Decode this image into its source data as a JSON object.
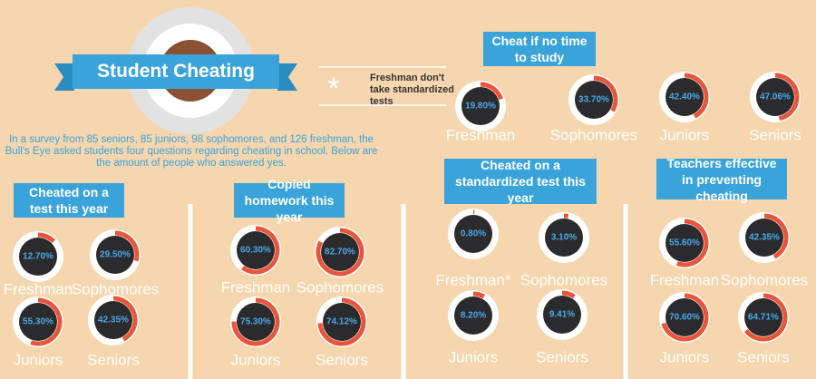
{
  "title": "Student Cheating",
  "note_mark": "*",
  "note": "Freshman don't take standardized tests",
  "intro": "In a survey from 85 seniors, 85 juniors, 98 sophomores, and 126 freshman, the Bull's Eye asked students four questions regarding cheating in school. Below are the amount of people who answered yes.",
  "chart_data": [
    {
      "type": "gauge",
      "title": "Cheated on a test this year",
      "categories": [
        "Freshman",
        "Sophomores",
        "Juniors",
        "Seniors"
      ],
      "values": [
        12.7,
        29.5,
        55.3,
        42.35
      ],
      "value_labels": [
        "12.70%",
        "29.50%",
        "55.30%",
        "42.35%"
      ],
      "color": "#e8553a"
    },
    {
      "type": "gauge",
      "title": "Copied homework this year",
      "categories": [
        "Freshman",
        "Sophomores",
        "Juniors",
        "Seniors"
      ],
      "values": [
        60.3,
        82.7,
        75.3,
        74.12
      ],
      "value_labels": [
        "60.30%",
        "82.70%",
        "75.30%",
        "74.12%"
      ],
      "color": "#e8553a"
    },
    {
      "type": "gauge",
      "title": "Cheated on a standardized test this year",
      "categories": [
        "Freshman*",
        "Sophomores",
        "Juniors",
        "Seniors"
      ],
      "values": [
        0.8,
        3.1,
        8.2,
        9.41
      ],
      "value_labels": [
        "0.80%",
        "3.10%",
        "8.20%",
        "9.41%"
      ],
      "color": "#e8553a"
    },
    {
      "type": "gauge",
      "title": "Teachers effective in preventing cheating",
      "categories": [
        "Freshman",
        "Sophomores",
        "Juniors",
        "Seniors"
      ],
      "values": [
        55.6,
        42.35,
        70.6,
        64.71
      ],
      "value_labels": [
        "55.60%",
        "42.35%",
        "70.60%",
        "64.71%"
      ],
      "color": "#e8553a"
    },
    {
      "type": "gauge",
      "title": "Cheat if no time to study",
      "categories": [
        "Freshman",
        "Sophomores",
        "Juniors",
        "Seniors"
      ],
      "values": [
        19.8,
        33.7,
        42.4,
        47.06
      ],
      "value_labels": [
        "19.80%",
        "33.70%",
        "42.40%",
        "47.06%"
      ],
      "color": "#e8553a"
    }
  ]
}
